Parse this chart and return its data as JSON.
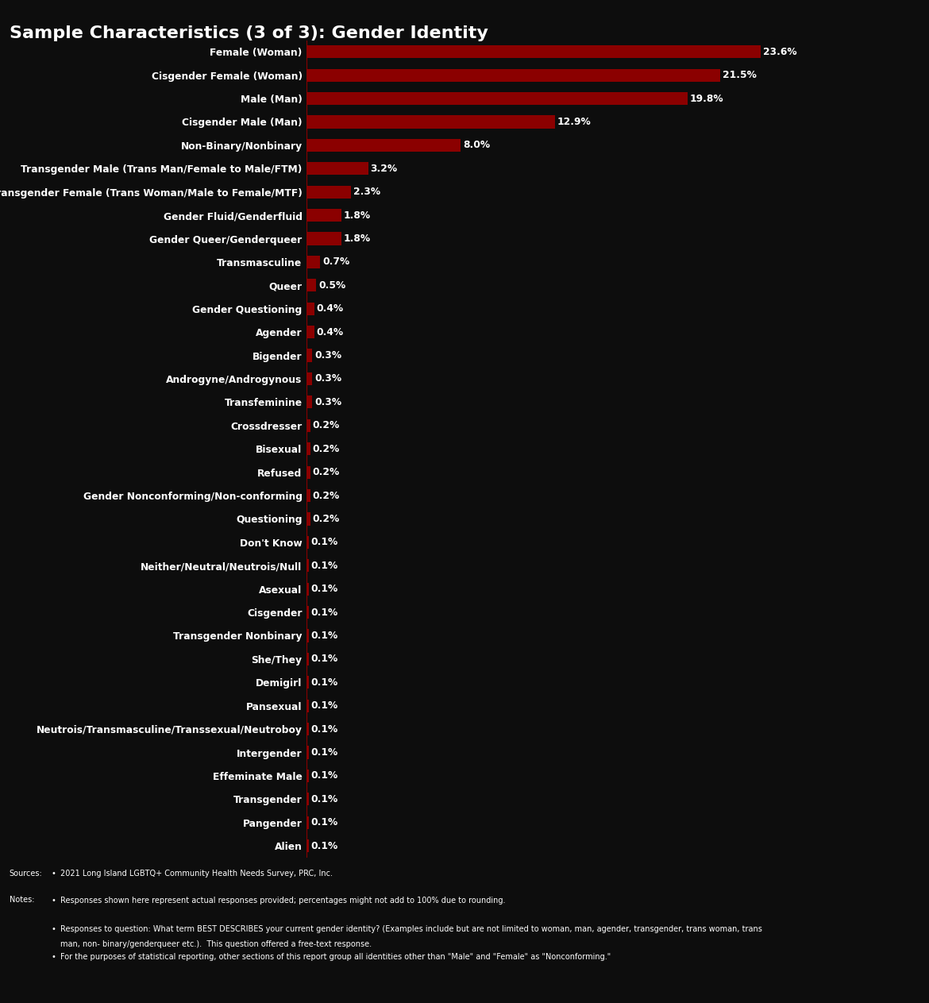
{
  "title": "Sample Characteristics (3 of 3): Gender Identity",
  "categories": [
    "Female (Woman)",
    "Cisgender Female (Woman)",
    "Male (Man)",
    "Cisgender Male (Man)",
    "Non-Binary/Nonbinary",
    "Transgender Male (Trans Man/Female to Male/FTM)",
    "Transgender Female (Trans Woman/Male to Female/MTF)",
    "Gender Fluid/Genderfluid",
    "Gender Queer/Genderqueer",
    "Transmasculine",
    "Queer",
    "Gender Questioning",
    "Agender",
    "Bigender",
    "Androgyne/Androgynous",
    "Transfeminine",
    "Crossdresser",
    "Bisexual",
    "Refused",
    "Gender Nonconforming/Non-conforming",
    "Questioning",
    "Don't Know",
    "Neither/Neutral/Neutrois/Null",
    "Asexual",
    "Cisgender",
    "Transgender Nonbinary",
    "She/They",
    "Demigirl",
    "Pansexual",
    "Neutrois/Transmasculine/Transsexual/Neutroboy",
    "Intergender",
    "Effeminate Male",
    "Transgender",
    "Pangender",
    "Alien"
  ],
  "values": [
    23.6,
    21.5,
    19.8,
    12.9,
    8.0,
    3.2,
    2.3,
    1.8,
    1.8,
    0.7,
    0.5,
    0.4,
    0.4,
    0.3,
    0.3,
    0.3,
    0.2,
    0.2,
    0.2,
    0.2,
    0.2,
    0.1,
    0.1,
    0.1,
    0.1,
    0.1,
    0.1,
    0.1,
    0.1,
    0.1,
    0.1,
    0.1,
    0.1,
    0.1,
    0.1
  ],
  "labels": [
    "23.6%",
    "21.5%",
    "19.8%",
    "12.9%",
    "8.0%",
    "3.2%",
    "2.3%",
    "1.8%",
    "1.8%",
    "0.7%",
    "0.5%",
    "0.4%",
    "0.4%",
    "0.3%",
    "0.3%",
    "0.3%",
    "0.2%",
    "0.2%",
    "0.2%",
    "0.2%",
    "0.2%",
    "0.1%",
    "0.1%",
    "0.1%",
    "0.1%",
    "0.1%",
    "0.1%",
    "0.1%",
    "0.1%",
    "0.1%",
    "0.1%",
    "0.1%",
    "0.1%",
    "0.1%",
    "0.1%"
  ],
  "bar_color": "#8B0000",
  "background_color": "#0d0d0d",
  "title_color": "#ffffff",
  "label_color": "#ffffff",
  "value_color": "#ffffff",
  "source_label": "Sources:",
  "source_bullet": "2021 Long Island LGBTQ+ Community Health Needs Survey, PRC, Inc.",
  "notes_label": "Notes:",
  "notes_bullets": [
    "Responses shown here represent actual responses provided; percentages might not add to 100% due to rounding.",
    "Responses to question: What term BEST DESCRIBES your current gender identity? (Examples include but are not limited to woman, man, agender, transgender, trans woman, trans man, non- binary/genderqueer etc.).  This question offered a free-text response.",
    "For the purposes of statistical reporting, other sections of this report group all identities other than \"Male\" and \"Female\" as \"Nonconforming.\""
  ]
}
